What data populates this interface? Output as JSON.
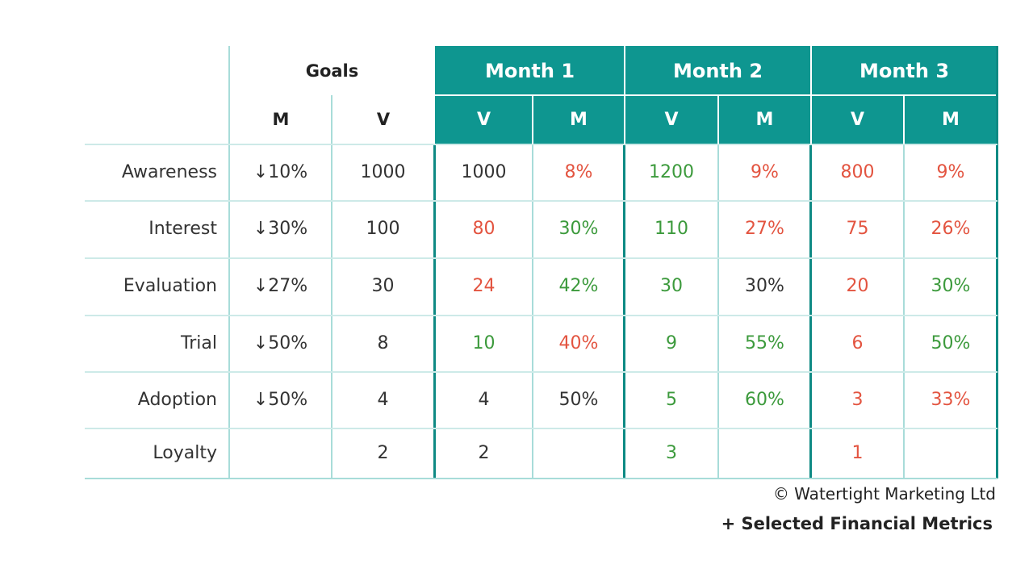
{
  "header": {
    "goals": "Goals",
    "months": [
      "Month 1",
      "Month 2",
      "Month 3"
    ],
    "goal_cols": [
      "M",
      "V"
    ],
    "month_cols": [
      "V",
      "M",
      "V",
      "M",
      "V",
      "M"
    ]
  },
  "rows": [
    {
      "label": "Awareness",
      "goal_m": "↓10%",
      "goal_v": "1000",
      "cells": [
        {
          "v": "1000",
          "c": "black"
        },
        {
          "v": "8%",
          "c": "red"
        },
        {
          "v": "1200",
          "c": "green"
        },
        {
          "v": "9%",
          "c": "red"
        },
        {
          "v": "800",
          "c": "red"
        },
        {
          "v": "9%",
          "c": "red"
        }
      ]
    },
    {
      "label": "Interest",
      "goal_m": "↓30%",
      "goal_v": "100",
      "cells": [
        {
          "v": "80",
          "c": "red"
        },
        {
          "v": "30%",
          "c": "green"
        },
        {
          "v": "110",
          "c": "green"
        },
        {
          "v": "27%",
          "c": "red"
        },
        {
          "v": "75",
          "c": "red"
        },
        {
          "v": "26%",
          "c": "red"
        }
      ]
    },
    {
      "label": "Evaluation",
      "goal_m": "↓27%",
      "goal_v": "30",
      "cells": [
        {
          "v": "24",
          "c": "red"
        },
        {
          "v": "42%",
          "c": "green"
        },
        {
          "v": "30",
          "c": "green"
        },
        {
          "v": "30%",
          "c": "black"
        },
        {
          "v": "20",
          "c": "red"
        },
        {
          "v": "30%",
          "c": "green"
        }
      ]
    },
    {
      "label": "Trial",
      "goal_m": "↓50%",
      "goal_v": "8",
      "cells": [
        {
          "v": "10",
          "c": "green"
        },
        {
          "v": "40%",
          "c": "red"
        },
        {
          "v": "9",
          "c": "green"
        },
        {
          "v": "55%",
          "c": "green"
        },
        {
          "v": "6",
          "c": "red"
        },
        {
          "v": "50%",
          "c": "green"
        }
      ]
    },
    {
      "label": "Adoption",
      "goal_m": "↓50%",
      "goal_v": "4",
      "cells": [
        {
          "v": "4",
          "c": "black"
        },
        {
          "v": "50%",
          "c": "black"
        },
        {
          "v": "5",
          "c": "green"
        },
        {
          "v": "60%",
          "c": "green"
        },
        {
          "v": "3",
          "c": "red"
        },
        {
          "v": "33%",
          "c": "red"
        }
      ]
    },
    {
      "label": "Loyalty",
      "goal_m": "",
      "goal_v": "2",
      "cells": [
        {
          "v": "2",
          "c": "black"
        },
        {
          "v": "",
          "c": "black"
        },
        {
          "v": "3",
          "c": "green"
        },
        {
          "v": "",
          "c": "black"
        },
        {
          "v": "1",
          "c": "red"
        },
        {
          "v": "",
          "c": "black"
        }
      ]
    }
  ],
  "footer": {
    "copyright": "© Watertight Marketing Ltd",
    "note": "+ Selected Financial Metrics"
  },
  "colors": {
    "teal": "#0e9690",
    "red": "#e35440",
    "green": "#3c9a3c",
    "text": "#333333"
  }
}
